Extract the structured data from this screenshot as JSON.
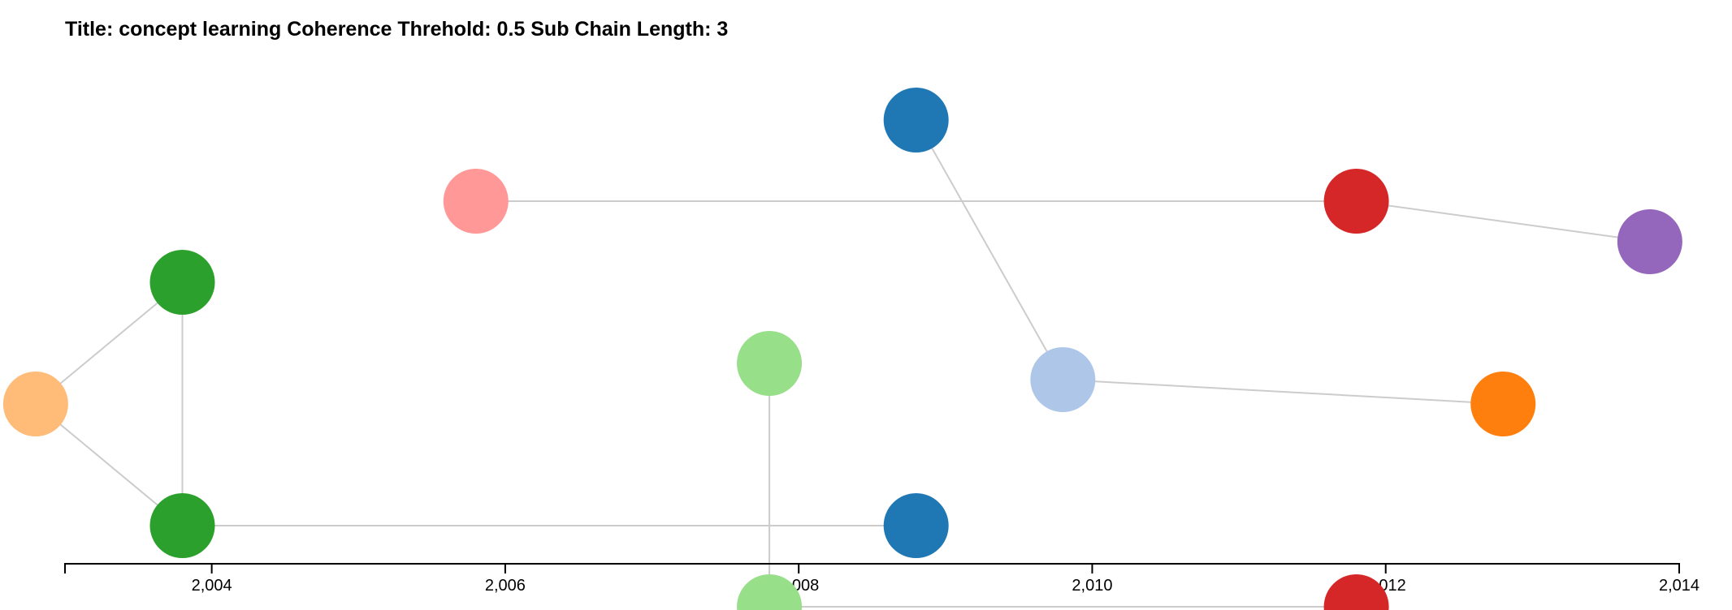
{
  "title": "Title: concept learning Coherence Threhold: 0.5 Sub Chain Length: 3",
  "axis": {
    "min": 2003,
    "max": 2014,
    "ticks": [
      2004,
      2006,
      2008,
      2010,
      2012,
      2014
    ],
    "tick_labels": [
      "2,004",
      "2,006",
      "2,008",
      "2,010",
      "2,012",
      "2,014"
    ]
  },
  "chart_data": {
    "type": "network",
    "x_axis": "year",
    "x_range": [
      2003,
      2014
    ],
    "nodes": [
      {
        "id": "n1",
        "year": 2003.8,
        "lane": 2,
        "color": "#2ca02c"
      },
      {
        "id": "n2",
        "year": 2003.8,
        "lane": 5,
        "color": "#2ca02c"
      },
      {
        "id": "n3",
        "year": 2002.8,
        "lane": 3.5,
        "color": "#ffbb78"
      },
      {
        "id": "n4",
        "year": 2005.8,
        "lane": 1,
        "color": "#ff9896"
      },
      {
        "id": "n5",
        "year": 2007.8,
        "lane": 3,
        "color": "#98df8a"
      },
      {
        "id": "n6",
        "year": 2007.8,
        "lane": 6,
        "color": "#98df8a"
      },
      {
        "id": "n7",
        "year": 2008.8,
        "lane": 0,
        "color": "#1f77b4"
      },
      {
        "id": "n8",
        "year": 2008.8,
        "lane": 5,
        "color": "#1f77b4"
      },
      {
        "id": "n9",
        "year": 2009.8,
        "lane": 3.2,
        "color": "#aec7e8"
      },
      {
        "id": "n10",
        "year": 2011.8,
        "lane": 1,
        "color": "#d62728"
      },
      {
        "id": "n11",
        "year": 2011.8,
        "lane": 6,
        "color": "#d62728"
      },
      {
        "id": "n12",
        "year": 2012.8,
        "lane": 3.5,
        "color": "#ff7f0e"
      },
      {
        "id": "n13",
        "year": 2013.8,
        "lane": 1.5,
        "color": "#9467bd"
      }
    ],
    "edges": [
      {
        "source": "n3",
        "target": "n1"
      },
      {
        "source": "n3",
        "target": "n2"
      },
      {
        "source": "n1",
        "target": "n2"
      },
      {
        "source": "n2",
        "target": "n8"
      },
      {
        "source": "n5",
        "target": "n6"
      },
      {
        "source": "n6",
        "target": "n11"
      },
      {
        "source": "n4",
        "target": "n10"
      },
      {
        "source": "n10",
        "target": "n13"
      },
      {
        "source": "n7",
        "target": "n9"
      },
      {
        "source": "n9",
        "target": "n12"
      }
    ]
  },
  "colors": {
    "edge": "#cccccc",
    "axis": "#000000"
  }
}
